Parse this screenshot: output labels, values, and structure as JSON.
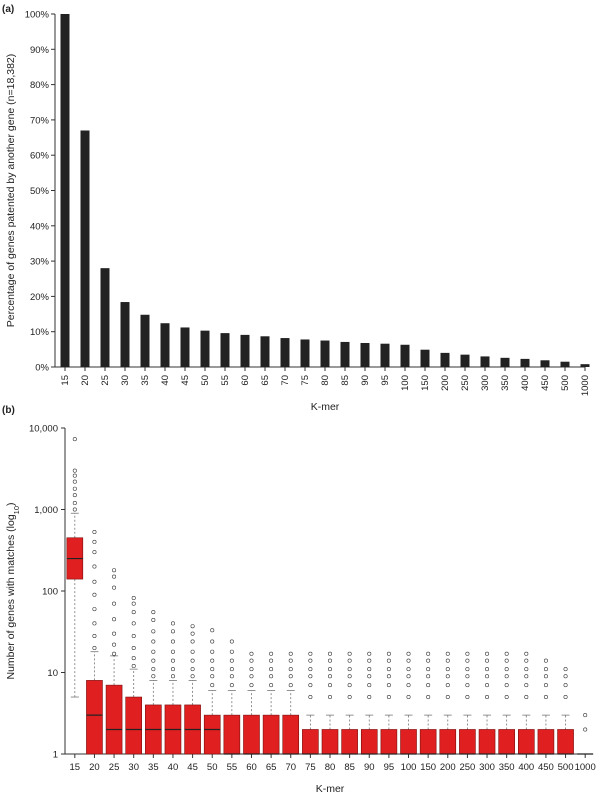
{
  "chart_data": [
    {
      "panel_label": "(a)",
      "type": "bar",
      "xlabel": "K-mer",
      "ylabel": "Percentage of genes patented by another gene (n=18,382)",
      "ylim": [
        0,
        100
      ],
      "y_ticks": [
        "0%",
        "10%",
        "20%",
        "30%",
        "40%",
        "50%",
        "60%",
        "70%",
        "80%",
        "90%",
        "100%"
      ],
      "categories": [
        "15",
        "20",
        "25",
        "30",
        "35",
        "40",
        "45",
        "50",
        "55",
        "60",
        "65",
        "70",
        "75",
        "80",
        "85",
        "90",
        "95",
        "100",
        "150",
        "200",
        "250",
        "300",
        "350",
        "400",
        "450",
        "500",
        "1000"
      ],
      "values": [
        100,
        67,
        28,
        18.4,
        14.8,
        12.4,
        11.2,
        10.3,
        9.6,
        9.1,
        8.7,
        8.2,
        7.8,
        7.5,
        7.1,
        6.8,
        6.6,
        6.3,
        4.9,
        4.0,
        3.5,
        3.0,
        2.6,
        2.3,
        1.9,
        1.5,
        0.8
      ],
      "bar_color": "#222222"
    },
    {
      "panel_label": "(b)",
      "type": "box",
      "xlabel": "K-mer",
      "ylabel_pre": "Number of genes with matches (log",
      "ylabel_sub": "10",
      "ylabel_post": ")",
      "y_scale": "log",
      "ylim": [
        1,
        10000
      ],
      "y_ticks": [
        {
          "v": 1,
          "t": "1"
        },
        {
          "v": 10,
          "t": "10"
        },
        {
          "v": 100,
          "t": "100"
        },
        {
          "v": 1000,
          "t": "1,000"
        },
        {
          "v": 10000,
          "t": "10,000"
        }
      ],
      "box_color": "#e02020",
      "categories": [
        "15",
        "20",
        "25",
        "30",
        "35",
        "40",
        "45",
        "50",
        "55",
        "60",
        "65",
        "70",
        "75",
        "80",
        "85",
        "90",
        "95",
        "100",
        "150",
        "200",
        "250",
        "300",
        "350",
        "400",
        "450",
        "500",
        "1000"
      ],
      "boxes": [
        {
          "q1": 140,
          "median": 250,
          "q3": 450,
          "low": 5,
          "high": 900,
          "outliers": [
            1000,
            1200,
            1500,
            1800,
            2200,
            2600,
            3000,
            7300
          ]
        },
        {
          "q1": 1,
          "median": 3,
          "q3": 8,
          "low": 1,
          "high": 18,
          "outliers": [
            20,
            28,
            40,
            60,
            90,
            130,
            200,
            300,
            400,
            530
          ]
        },
        {
          "q1": 1,
          "median": 2,
          "q3": 7,
          "low": 1,
          "high": 16,
          "outliers": [
            17,
            22,
            30,
            45,
            70,
            110,
            150,
            180
          ]
        },
        {
          "q1": 1,
          "median": 2,
          "q3": 5,
          "low": 1,
          "high": 11,
          "outliers": [
            12,
            15,
            20,
            28,
            40,
            55,
            70,
            82
          ]
        },
        {
          "q1": 1,
          "median": 2,
          "q3": 4,
          "low": 1,
          "high": 8,
          "outliers": [
            9,
            11,
            14,
            18,
            24,
            32,
            44,
            55
          ]
        },
        {
          "q1": 1,
          "median": 2,
          "q3": 4,
          "low": 1,
          "high": 8,
          "outliers": [
            9,
            11,
            14,
            18,
            24,
            32,
            40
          ]
        },
        {
          "q1": 1,
          "median": 2,
          "q3": 4,
          "low": 1,
          "high": 8,
          "outliers": [
            9,
            11,
            14,
            18,
            24,
            30,
            37
          ]
        },
        {
          "q1": 1,
          "median": 2,
          "q3": 3,
          "low": 1,
          "high": 6,
          "outliers": [
            7,
            9,
            11,
            14,
            18,
            24,
            33
          ]
        },
        {
          "q1": 1,
          "median": 1,
          "q3": 3,
          "low": 1,
          "high": 6,
          "outliers": [
            7,
            9,
            11,
            14,
            18,
            24
          ]
        },
        {
          "q1": 1,
          "median": 1,
          "q3": 3,
          "low": 1,
          "high": 6,
          "outliers": [
            7,
            9,
            11,
            14,
            17
          ]
        },
        {
          "q1": 1,
          "median": 1,
          "q3": 3,
          "low": 1,
          "high": 6,
          "outliers": [
            7,
            9,
            11,
            14,
            17
          ]
        },
        {
          "q1": 1,
          "median": 1,
          "q3": 3,
          "low": 1,
          "high": 6,
          "outliers": [
            7,
            9,
            11,
            14,
            17
          ]
        },
        {
          "q1": 1,
          "median": 1,
          "q3": 2,
          "low": 1,
          "high": 3,
          "outliers": [
            5,
            7,
            9,
            11,
            14,
            17
          ]
        },
        {
          "q1": 1,
          "median": 1,
          "q3": 2,
          "low": 1,
          "high": 3,
          "outliers": [
            5,
            7,
            9,
            11,
            14,
            17
          ]
        },
        {
          "q1": 1,
          "median": 1,
          "q3": 2,
          "low": 1,
          "high": 3,
          "outliers": [
            5,
            7,
            9,
            11,
            14,
            17
          ]
        },
        {
          "q1": 1,
          "median": 1,
          "q3": 2,
          "low": 1,
          "high": 3,
          "outliers": [
            5,
            7,
            9,
            11,
            14,
            17
          ]
        },
        {
          "q1": 1,
          "median": 1,
          "q3": 2,
          "low": 1,
          "high": 3,
          "outliers": [
            5,
            7,
            9,
            11,
            14,
            17
          ]
        },
        {
          "q1": 1,
          "median": 1,
          "q3": 2,
          "low": 1,
          "high": 3,
          "outliers": [
            5,
            7,
            9,
            11,
            14,
            17
          ]
        },
        {
          "q1": 1,
          "median": 1,
          "q3": 2,
          "low": 1,
          "high": 3,
          "outliers": [
            5,
            7,
            9,
            11,
            14,
            17
          ]
        },
        {
          "q1": 1,
          "median": 1,
          "q3": 2,
          "low": 1,
          "high": 3,
          "outliers": [
            5,
            7,
            9,
            11,
            14,
            17
          ]
        },
        {
          "q1": 1,
          "median": 1,
          "q3": 2,
          "low": 1,
          "high": 3,
          "outliers": [
            5,
            7,
            9,
            11,
            14,
            17
          ]
        },
        {
          "q1": 1,
          "median": 1,
          "q3": 2,
          "low": 1,
          "high": 3,
          "outliers": [
            5,
            7,
            9,
            11,
            14,
            17
          ]
        },
        {
          "q1": 1,
          "median": 1,
          "q3": 2,
          "low": 1,
          "high": 3,
          "outliers": [
            5,
            7,
            9,
            11,
            14,
            17
          ]
        },
        {
          "q1": 1,
          "median": 1,
          "q3": 2,
          "low": 1,
          "high": 3,
          "outliers": [
            5,
            7,
            9,
            11,
            14,
            17
          ]
        },
        {
          "q1": 1,
          "median": 1,
          "q3": 2,
          "low": 1,
          "high": 3,
          "outliers": [
            5,
            7,
            9,
            11,
            14
          ]
        },
        {
          "q1": 1,
          "median": 1,
          "q3": 2,
          "low": 1,
          "high": 3,
          "outliers": [
            5,
            7,
            9,
            11
          ]
        },
        {
          "q1": 1,
          "median": 1,
          "q3": 1,
          "low": 1,
          "high": 1,
          "outliers": [
            2,
            3
          ]
        }
      ]
    }
  ]
}
